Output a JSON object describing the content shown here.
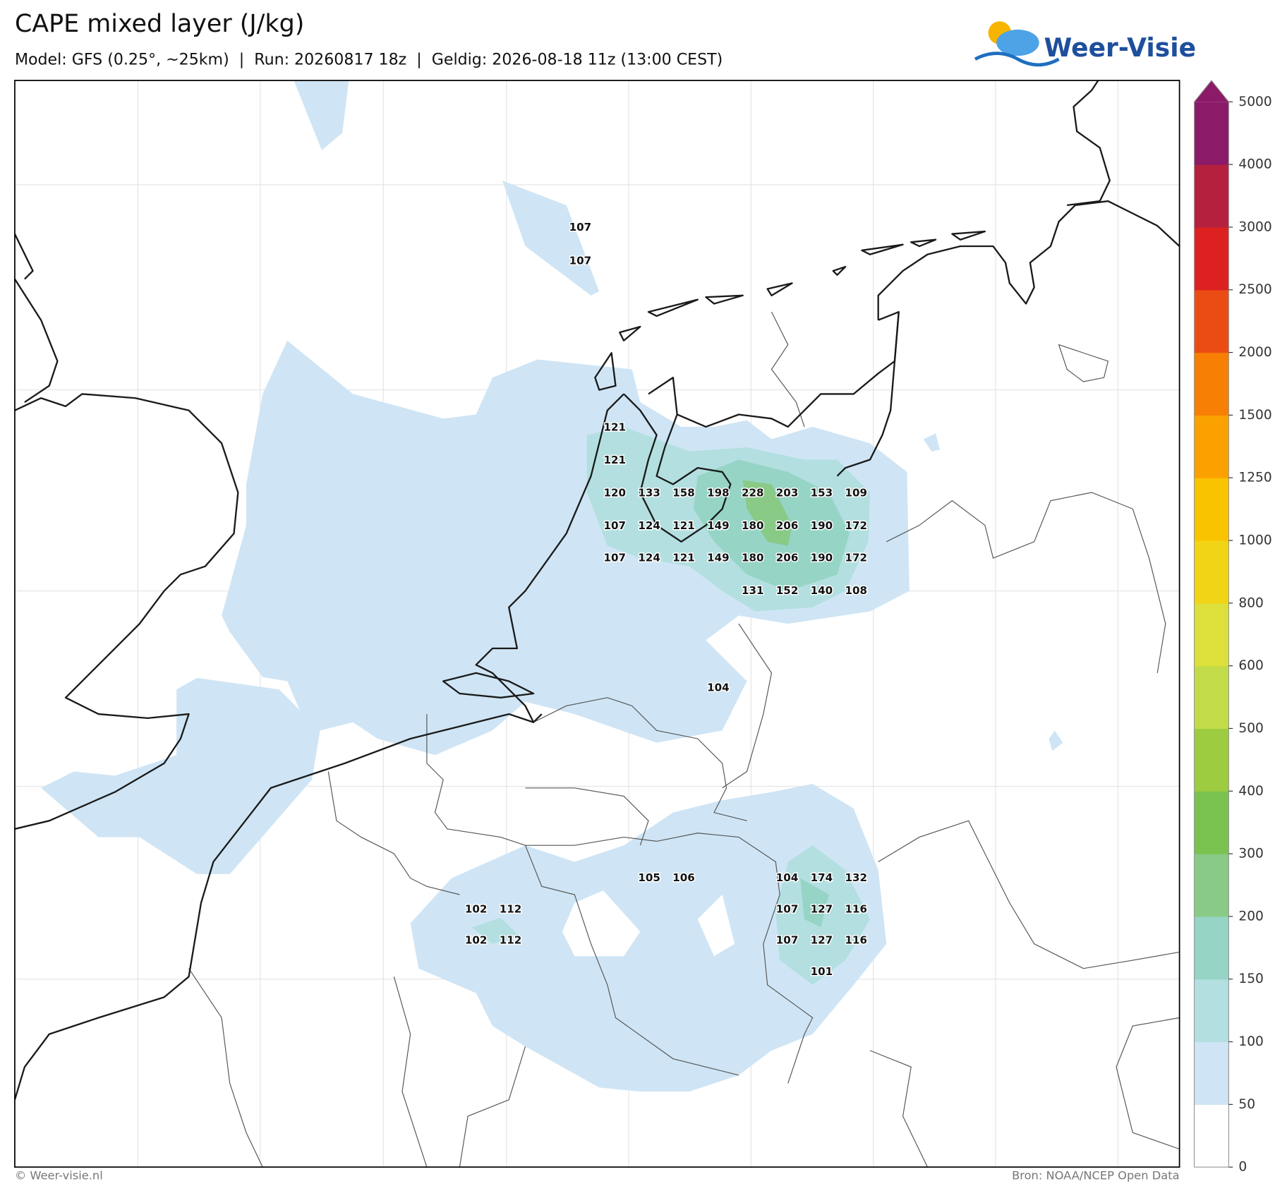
{
  "title": "CAPE mixed layer (J/kg)",
  "subtitle": "Model: GFS (0.25°, ~25km)  |  Run: 20260817 18z  |  Geldig: 2026-08-18 11z (13:00 CEST)",
  "logo": "Weer-Visie",
  "footer_left": "© Weer-visie.nl",
  "footer_right": "Bron: NOAA/NCEP Open Data",
  "colorbar": {
    "levels": [
      0,
      50,
      100,
      150,
      200,
      300,
      400,
      500,
      600,
      800,
      1000,
      1250,
      1500,
      2000,
      2500,
      3000,
      4000,
      5000
    ],
    "colors": [
      "#ffffff",
      "#cfe5f5",
      "#b3dfe0",
      "#96d4c6",
      "#89ca86",
      "#7ac24f",
      "#9dcc40",
      "#c1dc48",
      "#dde03a",
      "#f2d416",
      "#fac300",
      "#faa100",
      "#f77f04",
      "#eb4c13",
      "#dc2120",
      "#b5203e",
      "#8b1a68"
    ]
  },
  "grid_values": [
    107,
    107,
    121,
    121,
    120,
    133,
    158,
    198,
    228,
    203,
    153,
    109,
    107,
    124,
    121,
    149,
    180,
    206,
    190,
    172,
    107,
    124,
    121,
    149,
    180,
    206,
    190,
    172,
    131,
    152,
    140,
    108,
    104,
    105,
    106,
    104,
    174,
    132,
    102,
    112,
    107,
    127,
    116,
    102,
    112,
    107,
    127,
    116,
    101
  ]
}
